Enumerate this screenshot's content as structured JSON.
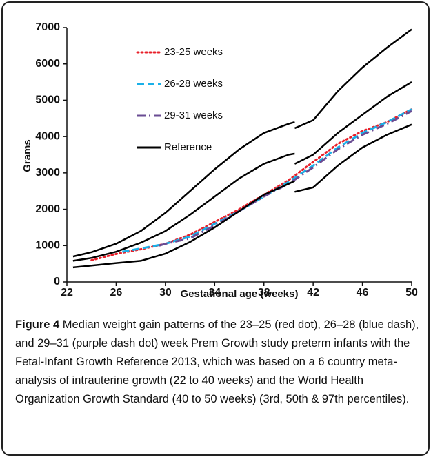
{
  "chart_data": {
    "type": "line",
    "ylabel": "Grams",
    "xlabel": "Gestational age (weeks)",
    "xlim": [
      22,
      50
    ],
    "xticks": [
      22,
      26,
      30,
      34,
      38,
      42,
      46,
      50
    ],
    "ylim": [
      0,
      7000
    ],
    "yticks": [
      0,
      1000,
      2000,
      3000,
      4000,
      5000,
      6000,
      7000
    ],
    "series": [
      {
        "name": "23-25 weeks",
        "color": "#e8202a",
        "style": "dot",
        "x": [
          24,
          26,
          28,
          30,
          32,
          34,
          36,
          38,
          40,
          42,
          44,
          46,
          48,
          50
        ],
        "values": [
          600,
          770,
          900,
          1050,
          1300,
          1650,
          2000,
          2400,
          2800,
          3300,
          3800,
          4150,
          4400,
          4750
        ]
      },
      {
        "name": "26-28 weeks",
        "color": "#1ab0e8",
        "style": "dash",
        "x": [
          26.5,
          28,
          30,
          32,
          34,
          36,
          38,
          40,
          42,
          44,
          46,
          48,
          50
        ],
        "values": [
          830,
          920,
          1050,
          1250,
          1600,
          1950,
          2350,
          2750,
          3200,
          3700,
          4100,
          4400,
          4750
        ]
      },
      {
        "name": "29-31 weeks",
        "color": "#6a4c93",
        "style": "dashdot",
        "x": [
          29.5,
          30,
          32,
          34,
          36,
          38,
          40,
          42,
          44,
          46,
          48,
          50
        ],
        "values": [
          1000,
          1050,
          1200,
          1550,
          1950,
          2350,
          2700,
          3150,
          3650,
          4050,
          4350,
          4700
        ]
      },
      {
        "name": "Reference",
        "color": "#000000",
        "style": "solid",
        "x": [
          22.5,
          24,
          26,
          28,
          30,
          32,
          34,
          36,
          38,
          40,
          40.5,
          40.5,
          40.5,
          42,
          44,
          46,
          48,
          50
        ],
        "lines": [
          [
            700,
            820,
            1050,
            1400,
            1900,
            2500,
            3100,
            3650,
            4100,
            4350,
            4400,
            null,
            4230,
            4450,
            5250,
            5900,
            6450,
            6950
          ],
          [
            580,
            660,
            830,
            1080,
            1400,
            1850,
            2350,
            2850,
            3250,
            3500,
            3530,
            null,
            3250,
            3500,
            4100,
            4600,
            5100,
            5500
          ],
          [
            400,
            450,
            520,
            580,
            780,
            1100,
            1500,
            1950,
            2400,
            2700,
            2780,
            null,
            2480,
            2600,
            3200,
            3700,
            4050,
            4330
          ]
        ]
      }
    ]
  },
  "caption_label": "Figure 4",
  "caption": "Median weight gain patterns of the 23–25 (red dot), 26–28 (blue dash), and 29–31 (purple dash dot) week Prem Growth study preterm infants with the Fetal-Infant Growth Reference 2013, which was based on a 6 country meta-analysis of intrauterine growth (22 to 40 weeks) and the World Health Organization Growth Standard (40 to 50 weeks) (3rd, 50th & 97th percentiles)."
}
